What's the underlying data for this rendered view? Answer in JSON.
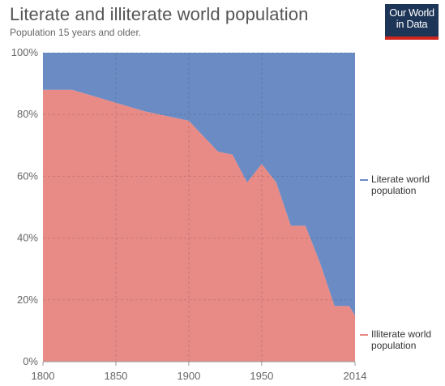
{
  "header": {
    "title": "Literate and illiterate world population",
    "subtitle": "Population 15 years and older."
  },
  "logo": {
    "line1": "Our World",
    "line2": "in Data",
    "bg_color": "#1d3557",
    "accent_color": "#ce261e"
  },
  "chart_data": {
    "type": "area",
    "stacked": true,
    "normalized": true,
    "x": [
      1800,
      1820,
      1870,
      1900,
      1920,
      1930,
      1940,
      1950,
      1960,
      1970,
      1980,
      1990,
      2000,
      2010,
      2014
    ],
    "series": [
      {
        "name": "Illiterate world population",
        "color": "#e88a85",
        "values": [
          88,
          88,
          81,
          78,
          68,
          67,
          58,
          64,
          58,
          44,
          44,
          32,
          18,
          18,
          15
        ]
      },
      {
        "name": "Literate world population",
        "color": "#6a8bc4",
        "values": [
          12,
          12,
          19,
          22,
          32,
          33,
          42,
          36,
          42,
          56,
          56,
          68,
          82,
          82,
          85
        ]
      }
    ],
    "xlim": [
      1800,
      2014
    ],
    "ylim": [
      0,
      100
    ],
    "y_ticks": [
      "0%",
      "20%",
      "40%",
      "60%",
      "80%",
      "100%"
    ],
    "y_tick_values": [
      0,
      20,
      40,
      60,
      80,
      100
    ],
    "x_ticks": [
      "1800",
      "1850",
      "1900",
      "1950",
      "2014"
    ],
    "x_tick_values": [
      1800,
      1850,
      1900,
      1950,
      2014
    ],
    "grid": true,
    "legend_placement": "right"
  }
}
